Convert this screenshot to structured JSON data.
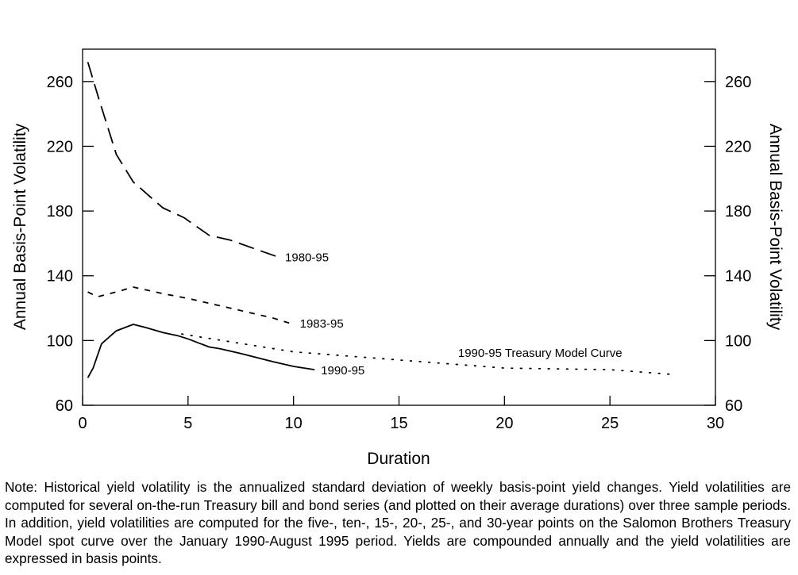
{
  "chart_data": {
    "type": "line",
    "xlabel": "Duration",
    "ylabel": "Annual Basis-Point Volatility",
    "ylabel_right": "Annual Basis-Point Volatility",
    "xlim": [
      0,
      30
    ],
    "ylim": [
      60,
      280
    ],
    "xticks": [
      0,
      5,
      10,
      15,
      20,
      25,
      30
    ],
    "yticks": [
      60,
      100,
      140,
      180,
      220,
      260
    ],
    "grid": false,
    "legend": "none (series labeled inline at line ends)",
    "series": [
      {
        "name": "1980-95",
        "style": "long-dash",
        "x": [
          0.25,
          0.8,
          1.6,
          2.4,
          3.8,
          4.8,
          6.0,
          7.0,
          9.4
        ],
        "y": [
          272,
          248,
          215,
          198,
          182,
          176,
          165,
          162,
          151
        ]
      },
      {
        "name": "1983-95",
        "style": "short-dash",
        "x": [
          0.25,
          0.7,
          1.6,
          2.4,
          3.8,
          5.0,
          6.0,
          7.0,
          8.0,
          9.0,
          10.0
        ],
        "y": [
          130,
          127,
          130,
          133,
          129,
          126,
          123,
          120,
          117,
          114,
          110
        ]
      },
      {
        "name": "1990-95",
        "style": "solid",
        "x": [
          0.25,
          0.5,
          0.9,
          1.6,
          2.4,
          3.0,
          3.8,
          4.5,
          5.0,
          6.0,
          6.5,
          7.5,
          9.0,
          10.0,
          11.0
        ],
        "y": [
          77,
          83,
          98,
          106,
          110,
          108,
          105,
          103,
          101,
          96,
          95,
          92,
          87,
          84,
          82
        ]
      },
      {
        "name": "1990-95 Treasury Model Curve",
        "style": "dotted",
        "x": [
          4.7,
          10,
          15,
          20,
          25,
          28
        ],
        "y": [
          104,
          93,
          88,
          83,
          82,
          79
        ]
      }
    ]
  },
  "note": "Note: Historical yield volatility is the annualized standard deviation of weekly basis-point yield changes. Yield volatilities are computed for several on-the-run Treasury bill and bond series (and plotted on their average durations) over three sample periods. In addition, yield volatilities are computed for the five-, ten-, 15-, 20-, 25-, and 30-year points on the Salomon Brothers Treasury Model spot curve over the January 1990-August 1995 period. Yields are compounded annually and the yield volatilities are expressed in basis points."
}
